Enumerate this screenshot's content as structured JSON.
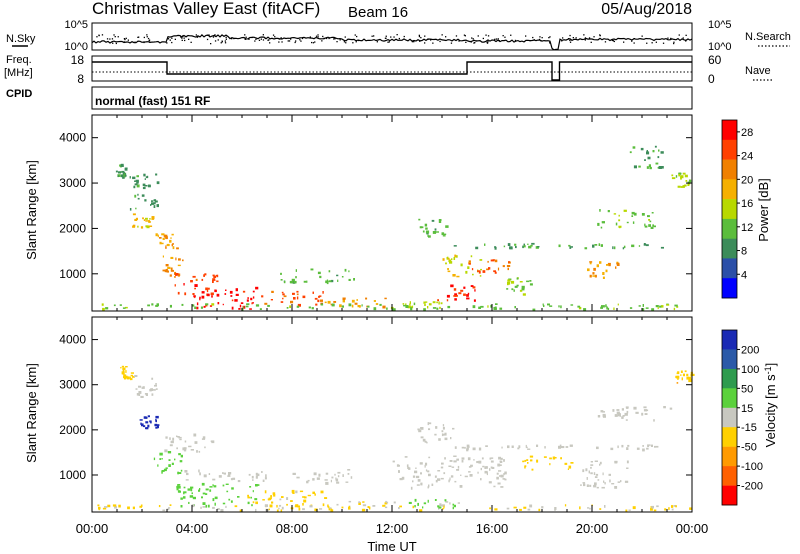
{
  "header": {
    "title": "Christmas Valley East (fitACF)",
    "beam": "Beam 16",
    "date": "05/Aug/2018"
  },
  "aux_panels": {
    "left_labels": {
      "nsky": "N.Sky",
      "freq_line1": "Freq.",
      "freq_line2": "[MHz]",
      "cpid": "CPID"
    },
    "right_labels": {
      "nsearch": "N.Search",
      "nave": "Nave"
    },
    "noise_ticks_left": [
      "10^5",
      "10^0"
    ],
    "noise_ticks_right": [
      "10^5",
      "10^0"
    ],
    "freq_ticks": [
      "18",
      "8"
    ],
    "nave_ticks": [
      "60",
      "0"
    ],
    "cpid_text": "normal (fast) 151 RF"
  },
  "colors": {
    "power_scale": [
      "#0000ff",
      "#2b4fa8",
      "#3c8c5a",
      "#5bbd3c",
      "#b8d800",
      "#f5b000",
      "#f08000",
      "#ff4000",
      "#ff0000"
    ],
    "velocity_scale": [
      "#ff0000",
      "#ff6000",
      "#ff9a00",
      "#ffd000",
      "#c8c8c0",
      "#5bd13c",
      "#2e9b4e",
      "#2b5aa8",
      "#1a2ab4"
    ]
  },
  "chart_data": [
    {
      "type": "heatmap",
      "title": "Power",
      "xlabel": "",
      "ylabel": "Slant Range [km]",
      "xlim": [
        "00:00",
        "24:00"
      ],
      "ylim": [
        180,
        4500
      ],
      "yticks": [
        "1000",
        "2000",
        "3000",
        "4000"
      ],
      "colorbar": {
        "label": "Power [dB]",
        "ticks": [
          "4",
          "8",
          "12",
          "16",
          "20",
          "24",
          "28"
        ],
        "range": [
          0,
          30
        ]
      },
      "bands": [
        {
          "t": [
            0.9,
            1.4
          ],
          "r": [
            3100,
            3400
          ],
          "v": 9
        },
        {
          "t": [
            1.4,
            2.6
          ],
          "r": [
            2300,
            3200
          ],
          "v": 9
        },
        {
          "t": [
            1.6,
            2.4
          ],
          "r": [
            2000,
            2300
          ],
          "v": 17
        },
        {
          "t": [
            2.5,
            3.4
          ],
          "r": [
            1500,
            1900
          ],
          "v": 20
        },
        {
          "t": [
            2.8,
            3.6
          ],
          "r": [
            900,
            1400
          ],
          "v": 21
        },
        {
          "t": [
            3.3,
            5.0
          ],
          "r": [
            500,
            1000
          ],
          "v": 25
        },
        {
          "t": [
            4.0,
            6.6
          ],
          "r": [
            200,
            700
          ],
          "v": 28
        },
        {
          "t": [
            6.6,
            9.3
          ],
          "r": [
            300,
            600
          ],
          "v": 24
        },
        {
          "t": [
            9.3,
            11.8
          ],
          "r": [
            250,
            450
          ],
          "v": 20
        },
        {
          "t": [
            7.5,
            10.5
          ],
          "r": [
            800,
            1100
          ],
          "v": 11
        },
        {
          "t": [
            11.8,
            14.0
          ],
          "r": [
            220,
            380
          ],
          "v": 14
        },
        {
          "t": [
            13.8,
            15.3
          ],
          "r": [
            400,
            800
          ],
          "v": 27
        },
        {
          "t": [
            14.0,
            15.6
          ],
          "r": [
            900,
            1400
          ],
          "v": 16
        },
        {
          "t": [
            15.0,
            16.7
          ],
          "r": [
            1000,
            1300
          ],
          "v": 24
        },
        {
          "t": [
            13.0,
            14.2
          ],
          "r": [
            1800,
            2200
          ],
          "v": 11
        },
        {
          "t": [
            14.4,
            18.3
          ],
          "r": [
            1550,
            1650
          ],
          "v": 10
        },
        {
          "t": [
            18.6,
            22.8
          ],
          "r": [
            1550,
            1650
          ],
          "v": 10
        },
        {
          "t": [
            19.8,
            21.0
          ],
          "r": [
            900,
            1300
          ],
          "v": 20
        },
        {
          "t": [
            20.2,
            22.5
          ],
          "r": [
            2000,
            2400
          ],
          "v": 12
        },
        {
          "t": [
            21.5,
            22.8
          ],
          "r": [
            3300,
            3800
          ],
          "v": 9
        },
        {
          "t": [
            23.0,
            23.9
          ],
          "r": [
            2900,
            3200
          ],
          "v": 14
        },
        {
          "t": [
            16.5,
            17.6
          ],
          "r": [
            500,
            900
          ],
          "v": 13
        },
        {
          "t": [
            0.0,
            24.0
          ],
          "r": [
            200,
            320
          ],
          "v": 12
        }
      ]
    },
    {
      "type": "heatmap",
      "title": "Velocity",
      "xlabel": "Time UT",
      "ylabel": "Slant Range [km]",
      "xlim": [
        "00:00",
        "24:00"
      ],
      "ylim": [
        180,
        4500
      ],
      "xticks": [
        "00:00",
        "04:00",
        "08:00",
        "12:00",
        "16:00",
        "20:00",
        "00:00"
      ],
      "yticks": [
        "1000",
        "2000",
        "3000",
        "4000"
      ],
      "colorbar": {
        "label": "Velocity [m s^-1]",
        "ticks": [
          "200",
          "100",
          "50",
          "15",
          "-15",
          "-50",
          "-100",
          "-200"
        ],
        "range": [
          -250,
          250
        ]
      },
      "bands": [
        {
          "t": [
            1.1,
            1.6
          ],
          "r": [
            3100,
            3400
          ],
          "v": -60
        },
        {
          "t": [
            1.5,
            2.6
          ],
          "r": [
            2700,
            3200
          ],
          "v": 0
        },
        {
          "t": [
            1.9,
            2.6
          ],
          "r": [
            2000,
            2300
          ],
          "v": 220
        },
        {
          "t": [
            2.8,
            4.8
          ],
          "r": [
            1500,
            1900
          ],
          "v": 0
        },
        {
          "t": [
            2.4,
            3.6
          ],
          "r": [
            1000,
            1500
          ],
          "v": 60
        },
        {
          "t": [
            3.6,
            7.0
          ],
          "r": [
            850,
            1100
          ],
          "v": 0
        },
        {
          "t": [
            3.2,
            6.6
          ],
          "r": [
            300,
            800
          ],
          "v": 60
        },
        {
          "t": [
            6.2,
            9.4
          ],
          "r": [
            300,
            650
          ],
          "v": -45
        },
        {
          "t": [
            8.0,
            10.5
          ],
          "r": [
            800,
            1100
          ],
          "v": 0
        },
        {
          "t": [
            9.4,
            12.6
          ],
          "r": [
            220,
            420
          ],
          "v": -30
        },
        {
          "t": [
            12.5,
            14.7
          ],
          "r": [
            250,
            450
          ],
          "v": 40
        },
        {
          "t": [
            12.0,
            16.5
          ],
          "r": [
            700,
            1400
          ],
          "v": 0
        },
        {
          "t": [
            13.0,
            14.4
          ],
          "r": [
            1700,
            2200
          ],
          "v": 0
        },
        {
          "t": [
            14.4,
            18.3
          ],
          "r": [
            1550,
            1650
          ],
          "v": 0
        },
        {
          "t": [
            18.6,
            22.8
          ],
          "r": [
            1550,
            1650
          ],
          "v": 0
        },
        {
          "t": [
            17.2,
            19.2
          ],
          "r": [
            1100,
            1400
          ],
          "v": -60
        },
        {
          "t": [
            19.4,
            21.4
          ],
          "r": [
            700,
            1300
          ],
          "v": 0
        },
        {
          "t": [
            20.2,
            23.4
          ],
          "r": [
            2200,
            2500
          ],
          "v": 0
        },
        {
          "t": [
            23.2,
            24.0
          ],
          "r": [
            3000,
            3300
          ],
          "v": -70
        },
        {
          "t": [
            0.0,
            24.0
          ],
          "r": [
            200,
            320
          ],
          "v": -30
        }
      ]
    }
  ]
}
